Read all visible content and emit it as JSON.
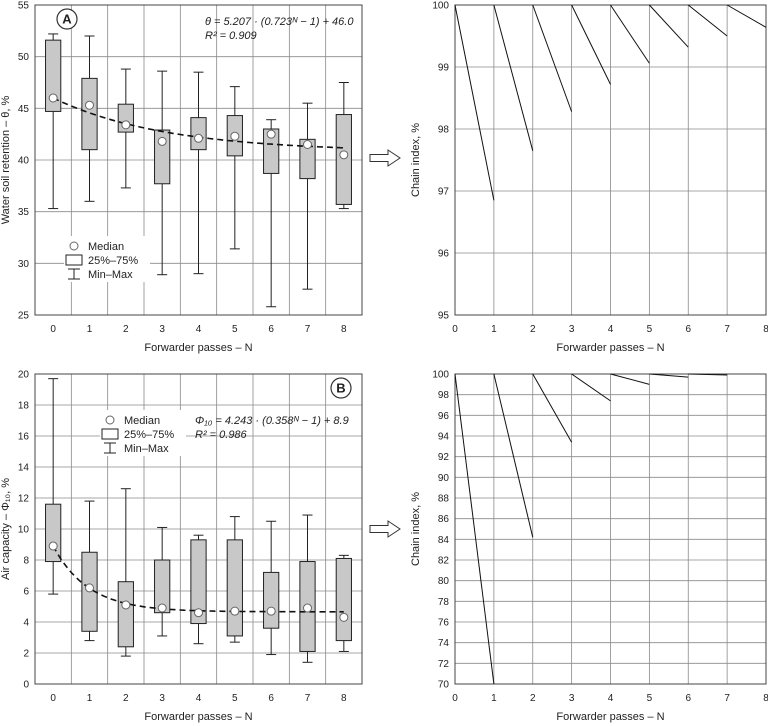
{
  "chart_data": [
    {
      "id": "A",
      "type": "box",
      "panel_label": "A",
      "xlabel": "Forwarder passes – N",
      "ylabel": "Water soil retention – θ, %",
      "xlim": [
        -0.5,
        8.5
      ],
      "ylim": [
        25,
        55
      ],
      "y_ticks": [
        25,
        30,
        35,
        40,
        45,
        50,
        55
      ],
      "categories": [
        "0",
        "1",
        "2",
        "3",
        "4",
        "5",
        "6",
        "7",
        "8"
      ],
      "boxes": [
        {
          "min": 35.3,
          "q1": 44.7,
          "median": 46.0,
          "q3": 51.6,
          "max": 52.2
        },
        {
          "min": 36.0,
          "q1": 41.0,
          "median": 45.3,
          "q3": 47.9,
          "max": 52.0
        },
        {
          "min": 37.3,
          "q1": 42.7,
          "median": 43.4,
          "q3": 45.4,
          "max": 48.8
        },
        {
          "min": 28.9,
          "q1": 37.7,
          "median": 41.8,
          "q3": 42.9,
          "max": 48.6
        },
        {
          "min": 29.0,
          "q1": 41.0,
          "median": 42.1,
          "q3": 44.1,
          "max": 48.5
        },
        {
          "min": 31.4,
          "q1": 40.4,
          "median": 42.3,
          "q3": 44.3,
          "max": 47.1
        },
        {
          "min": 25.8,
          "q1": 38.7,
          "median": 42.5,
          "q3": 43.0,
          "max": 43.9
        },
        {
          "min": 27.5,
          "q1": 38.2,
          "median": 41.5,
          "q3": 42.0,
          "max": 45.5
        },
        {
          "min": 35.3,
          "q1": 35.7,
          "median": 40.5,
          "q3": 44.4,
          "max": 47.5
        }
      ],
      "fit": {
        "a": 5.207,
        "b": 0.723,
        "c": 46.0
      },
      "equation": "θ = 5.207 · (0.723ᴺ − 1) + 46.0",
      "r2": "R² = 0.909",
      "legend": [
        "Median",
        "25%–75%",
        "Min–Max"
      ]
    },
    {
      "id": "A-chain",
      "type": "line",
      "xlabel": "Forwarder passes – N",
      "ylabel": "Chain index, %",
      "xlim": [
        0,
        8
      ],
      "ylim": [
        95,
        100
      ],
      "x_ticks": [
        0,
        1,
        2,
        3,
        4,
        5,
        6,
        7,
        8
      ],
      "y_ticks": [
        95,
        96,
        97,
        98,
        99,
        100
      ],
      "segments": [
        {
          "from": [
            0,
            100
          ],
          "to": [
            1,
            96.85
          ]
        },
        {
          "from": [
            1,
            100
          ],
          "to": [
            2,
            97.65
          ]
        },
        {
          "from": [
            2,
            100
          ],
          "to": [
            3,
            98.28
          ]
        },
        {
          "from": [
            3,
            100
          ],
          "to": [
            4,
            98.72
          ]
        },
        {
          "from": [
            4,
            100
          ],
          "to": [
            5,
            99.06
          ]
        },
        {
          "from": [
            5,
            100
          ],
          "to": [
            6,
            99.32
          ]
        },
        {
          "from": [
            6,
            100
          ],
          "to": [
            7,
            99.5
          ]
        },
        {
          "from": [
            7,
            100
          ],
          "to": [
            8,
            99.64
          ]
        }
      ]
    },
    {
      "id": "B",
      "type": "box",
      "panel_label": "B",
      "xlabel": "Forwarder passes – N",
      "ylabel": "Air capacity – Φ₁₀, %",
      "xlim": [
        -0.5,
        8.5
      ],
      "ylim": [
        0,
        20
      ],
      "y_ticks": [
        0,
        2,
        4,
        6,
        8,
        10,
        12,
        14,
        16,
        18,
        20
      ],
      "categories": [
        "0",
        "1",
        "2",
        "3",
        "4",
        "5",
        "6",
        "7",
        "8"
      ],
      "boxes": [
        {
          "min": 5.8,
          "q1": 7.9,
          "median": 8.9,
          "q3": 11.6,
          "max": 19.7
        },
        {
          "min": 2.8,
          "q1": 3.4,
          "median": 6.2,
          "q3": 8.5,
          "max": 11.8
        },
        {
          "min": 1.8,
          "q1": 2.4,
          "median": 5.1,
          "q3": 6.6,
          "max": 12.6
        },
        {
          "min": 3.1,
          "q1": 4.6,
          "median": 4.9,
          "q3": 8.0,
          "max": 10.1
        },
        {
          "min": 2.6,
          "q1": 3.9,
          "median": 4.6,
          "q3": 9.3,
          "max": 9.6
        },
        {
          "min": 2.7,
          "q1": 3.1,
          "median": 4.7,
          "q3": 9.3,
          "max": 10.8
        },
        {
          "min": 1.9,
          "q1": 3.6,
          "median": 4.7,
          "q3": 7.2,
          "max": 10.5
        },
        {
          "min": 1.4,
          "q1": 2.1,
          "median": 4.9,
          "q3": 7.9,
          "max": 10.9
        },
        {
          "min": 2.1,
          "q1": 2.8,
          "median": 4.3,
          "q3": 8.1,
          "max": 8.3
        }
      ],
      "fit": {
        "a": 4.243,
        "b": 0.358,
        "c": 8.9
      },
      "equation": "Φ₁₀ = 4.243 · (0.358ᴺ − 1) + 8.9",
      "r2": "R² = 0.986",
      "legend": [
        "Median",
        "25%–75%",
        "Min–Max"
      ]
    },
    {
      "id": "B-chain",
      "type": "line",
      "xlabel": "Forwarder passes – N",
      "ylabel": "Chain index, %",
      "xlim": [
        0,
        8
      ],
      "ylim": [
        70,
        100
      ],
      "x_ticks": [
        0,
        1,
        2,
        3,
        4,
        5,
        6,
        7,
        8
      ],
      "y_ticks": [
        70,
        72,
        74,
        76,
        78,
        80,
        82,
        84,
        86,
        88,
        90,
        92,
        94,
        96,
        98,
        100
      ],
      "segments": [
        {
          "from": [
            0,
            100
          ],
          "to": [
            1,
            70.0
          ]
        },
        {
          "from": [
            1,
            100
          ],
          "to": [
            2,
            84.2
          ]
        },
        {
          "from": [
            2,
            100
          ],
          "to": [
            3,
            93.4
          ]
        },
        {
          "from": [
            3,
            100
          ],
          "to": [
            4,
            97.4
          ]
        },
        {
          "from": [
            4,
            100
          ],
          "to": [
            5,
            99.0
          ]
        },
        {
          "from": [
            5,
            100
          ],
          "to": [
            6,
            99.7
          ]
        },
        {
          "from": [
            6,
            100
          ],
          "to": [
            7,
            99.9
          ]
        }
      ]
    }
  ]
}
